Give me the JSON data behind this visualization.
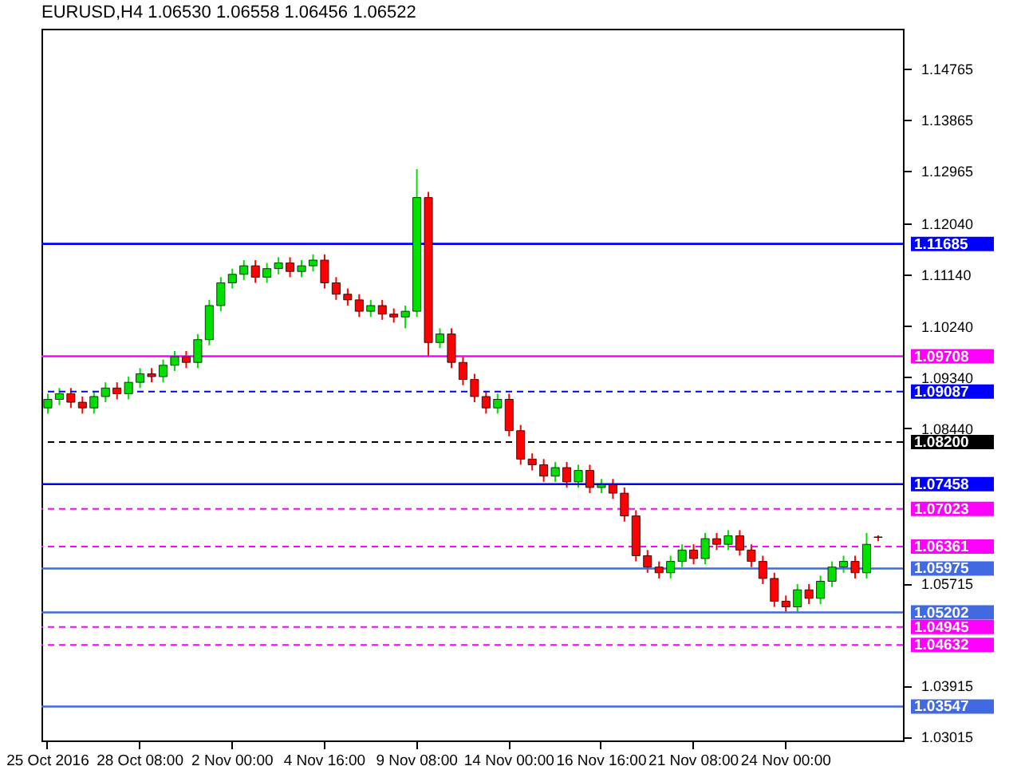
{
  "chart_data": {
    "type": "candlestick",
    "title": "EURUSD,H4 1.06530 1.06558 1.06456 1.06522",
    "categories": [
      "25 Oct 2016",
      null,
      null,
      null,
      null,
      null,
      null,
      null,
      "28 Oct 08:00",
      null,
      null,
      null,
      null,
      null,
      null,
      null,
      "2 Nov 00:00",
      null,
      null,
      null,
      null,
      null,
      null,
      null,
      "4 Nov 16:00",
      null,
      null,
      null,
      null,
      null,
      null,
      null,
      "9 Nov 08:00",
      null,
      null,
      null,
      null,
      null,
      null,
      null,
      "14 Nov 00:00",
      null,
      null,
      null,
      null,
      null,
      null,
      null,
      "16 Nov 16:00",
      null,
      null,
      null,
      null,
      null,
      null,
      null,
      "21 Nov 08:00",
      null,
      null,
      null,
      null,
      null,
      null,
      null,
      "24 Nov 00:00",
      null,
      null,
      null,
      null,
      null,
      null,
      null,
      null
    ],
    "ohlc": [
      [
        1.088,
        1.0905,
        1.087,
        1.0895
      ],
      [
        1.0895,
        1.0915,
        1.0885,
        1.0905
      ],
      [
        1.0905,
        1.0915,
        1.088,
        1.089
      ],
      [
        1.089,
        1.09,
        1.087,
        1.088
      ],
      [
        1.088,
        1.091,
        1.087,
        1.09
      ],
      [
        1.09,
        1.0925,
        1.089,
        1.0915
      ],
      [
        1.0915,
        1.0925,
        1.0895,
        1.0905
      ],
      [
        1.0905,
        1.0935,
        1.0895,
        1.0925
      ],
      [
        1.0925,
        1.095,
        1.0915,
        1.094
      ],
      [
        1.094,
        1.095,
        1.0925,
        1.0935
      ],
      [
        1.0935,
        1.0965,
        1.0925,
        1.0955
      ],
      [
        1.0955,
        1.098,
        1.0945,
        1.097
      ],
      [
        1.097,
        1.098,
        1.095,
        1.096
      ],
      [
        1.096,
        1.101,
        1.095,
        1.1
      ],
      [
        1.1,
        1.107,
        1.099,
        1.106
      ],
      [
        1.106,
        1.111,
        1.105,
        1.11
      ],
      [
        1.11,
        1.1125,
        1.109,
        1.1115
      ],
      [
        1.1115,
        1.114,
        1.1105,
        1.113
      ],
      [
        1.113,
        1.114,
        1.11,
        1.111
      ],
      [
        1.111,
        1.1135,
        1.11,
        1.1125
      ],
      [
        1.1125,
        1.1145,
        1.1115,
        1.1135
      ],
      [
        1.1135,
        1.1145,
        1.111,
        1.112
      ],
      [
        1.112,
        1.114,
        1.111,
        1.113
      ],
      [
        1.113,
        1.115,
        1.112,
        1.114
      ],
      [
        1.114,
        1.115,
        1.109,
        1.11
      ],
      [
        1.11,
        1.111,
        1.107,
        1.108
      ],
      [
        1.108,
        1.109,
        1.106,
        1.107
      ],
      [
        1.107,
        1.108,
        1.104,
        1.105
      ],
      [
        1.105,
        1.107,
        1.104,
        1.106
      ],
      [
        1.106,
        1.107,
        1.1035,
        1.1045
      ],
      [
        1.1045,
        1.1055,
        1.103,
        1.104
      ],
      [
        1.104,
        1.106,
        1.102,
        1.105
      ],
      [
        1.105,
        1.13,
        1.104,
        1.125
      ],
      [
        1.125,
        1.126,
        1.097,
        1.0995
      ],
      [
        1.0995,
        1.102,
        1.0985,
        1.101
      ],
      [
        1.101,
        1.102,
        1.095,
        1.096
      ],
      [
        1.096,
        1.097,
        1.092,
        1.093
      ],
      [
        1.093,
        1.094,
        1.089,
        1.09
      ],
      [
        1.09,
        1.091,
        1.087,
        1.088
      ],
      [
        1.088,
        1.0905,
        1.087,
        1.0895
      ],
      [
        1.0895,
        1.0905,
        1.083,
        1.084
      ],
      [
        1.084,
        1.085,
        1.078,
        1.079
      ],
      [
        1.079,
        1.08,
        1.077,
        1.078
      ],
      [
        1.078,
        1.079,
        1.075,
        1.076
      ],
      [
        1.076,
        1.0785,
        1.075,
        1.0775
      ],
      [
        1.0775,
        1.0785,
        1.074,
        1.075
      ],
      [
        1.075,
        1.078,
        1.074,
        1.077
      ],
      [
        1.077,
        1.078,
        1.073,
        1.074
      ],
      [
        1.074,
        1.0755,
        1.073,
        1.0745
      ],
      [
        1.0745,
        1.0755,
        1.072,
        1.073
      ],
      [
        1.073,
        1.074,
        1.068,
        1.069
      ],
      [
        1.069,
        1.07,
        1.061,
        1.062
      ],
      [
        1.062,
        1.063,
        1.059,
        1.06
      ],
      [
        1.06,
        1.061,
        1.058,
        1.059
      ],
      [
        1.059,
        1.062,
        1.058,
        1.061
      ],
      [
        1.061,
        1.064,
        1.06,
        1.063
      ],
      [
        1.063,
        1.064,
        1.0605,
        1.0615
      ],
      [
        1.0615,
        1.066,
        1.0605,
        1.065
      ],
      [
        1.065,
        1.066,
        1.063,
        1.064
      ],
      [
        1.064,
        1.0665,
        1.063,
        1.0655
      ],
      [
        1.0655,
        1.0665,
        1.062,
        1.063
      ],
      [
        1.063,
        1.064,
        1.06,
        1.061
      ],
      [
        1.061,
        1.062,
        1.057,
        1.058
      ],
      [
        1.058,
        1.059,
        1.053,
        1.054
      ],
      [
        1.054,
        1.055,
        1.052,
        1.053
      ],
      [
        1.053,
        1.057,
        1.052,
        1.056
      ],
      [
        1.056,
        1.057,
        1.0535,
        1.0545
      ],
      [
        1.0545,
        1.0585,
        1.0535,
        1.0575
      ],
      [
        1.0575,
        1.061,
        1.0565,
        1.06
      ],
      [
        1.06,
        1.062,
        1.059,
        1.061
      ],
      [
        1.061,
        1.062,
        1.058,
        1.059
      ],
      [
        1.059,
        1.066,
        1.058,
        1.064
      ],
      [
        1.0653,
        1.06558,
        1.06456,
        1.06522
      ]
    ],
    "colors": [
      "#00e000",
      "#00e000",
      "#ff0000",
      "#ff0000",
      "#00e000",
      "#00e000",
      "#ff0000",
      "#00e000",
      "#00e000",
      "#ff0000",
      "#00e000",
      "#00e000",
      "#ff0000",
      "#00e000",
      "#00e000",
      "#00e000",
      "#00e000",
      "#00e000",
      "#ff0000",
      "#00e000",
      "#00e000",
      "#ff0000",
      "#00e000",
      "#00e000",
      "#ff0000",
      "#ff0000",
      "#ff0000",
      "#ff0000",
      "#00e000",
      "#ff0000",
      "#ff0000",
      "#00e000",
      "#00e000",
      "#ff0000",
      "#00e000",
      "#ff0000",
      "#ff0000",
      "#ff0000",
      "#ff0000",
      "#00e000",
      "#ff0000",
      "#ff0000",
      "#ff0000",
      "#ff0000",
      "#00e000",
      "#ff0000",
      "#00e000",
      "#ff0000",
      "#00e000",
      "#ff0000",
      "#ff0000",
      "#ff0000",
      "#ff0000",
      "#ff0000",
      "#00e000",
      "#00e000",
      "#ff0000",
      "#00e000",
      "#ff0000",
      "#00e000",
      "#ff0000",
      "#ff0000",
      "#ff0000",
      "#ff0000",
      "#ff0000",
      "#00e000",
      "#ff0000",
      "#00e000",
      "#00e000",
      "#00e000",
      "#ff0000",
      "#00e000",
      "#ff0000"
    ],
    "ylim": [
      1.0295,
      1.1547
    ],
    "yticks": [
      1.14765,
      1.13865,
      1.12965,
      {
        "value": 1.1204,
        "label": "1.12040"
      },
      {
        "value": 1.1114,
        "label": "1.11140"
      },
      {
        "value": 1.1024,
        "label": "1.10240"
      },
      {
        "value": 1.0934,
        "label": "1.09340"
      },
      {
        "value": 1.0844,
        "label": "1.08440"
      },
      1.05715,
      1.03915,
      1.03015
    ],
    "ref_lines": [
      {
        "axis": "y",
        "value": 1.11685,
        "label": "1.11685",
        "color": "#0000ff",
        "line_style": "solid"
      },
      {
        "axis": "y",
        "value": 1.09708,
        "label": "1.09708",
        "color": "#ff00ff",
        "line_style": "solid"
      },
      {
        "axis": "y",
        "value": 1.09087,
        "label": "1.09087",
        "color": "#0000ff",
        "line_style": "dashed"
      },
      {
        "axis": "y",
        "value": 1.082,
        "label": "1.08200",
        "color": "#000000",
        "line_style": "dashed"
      },
      {
        "axis": "y",
        "value": 1.07458,
        "label": "1.07458",
        "color": "#0000ff",
        "line_style": "solid"
      },
      {
        "axis": "y",
        "value": 1.07023,
        "label": "1.07023",
        "color": "#ff00ff",
        "line_style": "dashed"
      },
      {
        "axis": "y",
        "value": 1.06361,
        "label": "1.06361",
        "color": "#ff00ff",
        "line_style": "dashed"
      },
      {
        "axis": "y",
        "value": 1.05975,
        "label": "1.05975",
        "color": "#4169e1",
        "line_style": "solid"
      },
      {
        "axis": "y",
        "value": 1.05202,
        "label": "1.05202",
        "color": "#4169e1",
        "line_style": "solid"
      },
      {
        "axis": "y",
        "value": 1.04945,
        "label": "1.04945",
        "color": "#ff00ff",
        "line_style": "dashed"
      },
      {
        "axis": "y",
        "value": 1.04632,
        "label": "1.04632",
        "color": "#ff00ff",
        "line_style": "dashed"
      },
      {
        "axis": "y",
        "value": 1.03547,
        "label": "1.03547",
        "color": "#4169e1",
        "line_style": "solid"
      }
    ],
    "grid": false
  }
}
